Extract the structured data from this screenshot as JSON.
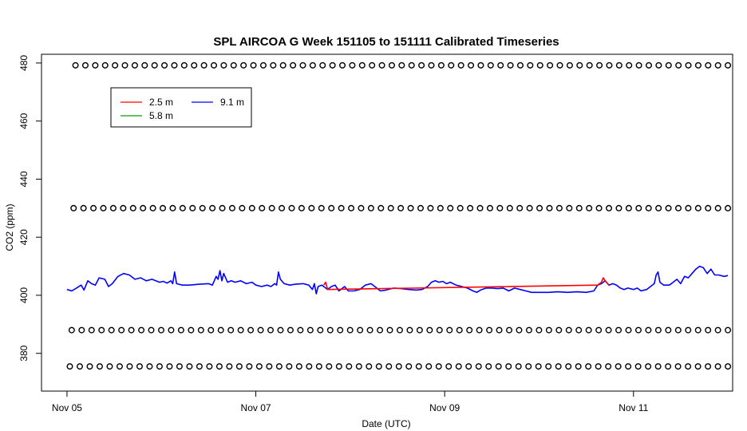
{
  "chart_data": {
    "type": "line",
    "title": "SPL AIRCOA G  Week 151105 to 151111  Calibrated Timeseries",
    "xlabel": "Date (UTC)",
    "ylabel": "CO2 (ppm)",
    "x_ticks": [
      {
        "day": 0,
        "label": "Nov 05"
      },
      {
        "day": 2,
        "label": "Nov 07"
      },
      {
        "day": 4,
        "label": "Nov 09"
      },
      {
        "day": 6,
        "label": "Nov 11"
      }
    ],
    "y_ticks": [
      380,
      400,
      420,
      440,
      460,
      480
    ],
    "xlim_days": [
      -0.27,
      7.05
    ],
    "ylim": [
      367,
      483
    ],
    "legend": {
      "placement": "top-left",
      "entries": [
        {
          "label": "2.5 m",
          "color": "#ff0000"
        },
        {
          "label": "5.8 m",
          "color": "#00a000"
        },
        {
          "label": "9.1 m",
          "color": "#0000ff"
        }
      ]
    },
    "series": [
      {
        "name": "9.1 m",
        "color": "#0000ff",
        "points": [
          [
            0.0,
            402.0
          ],
          [
            0.05,
            401.5
          ],
          [
            0.1,
            402.5
          ],
          [
            0.15,
            403.5
          ],
          [
            0.18,
            401.8
          ],
          [
            0.22,
            405.0
          ],
          [
            0.26,
            404.0
          ],
          [
            0.3,
            403.5
          ],
          [
            0.34,
            406.0
          ],
          [
            0.4,
            405.5
          ],
          [
            0.44,
            403.0
          ],
          [
            0.48,
            404.0
          ],
          [
            0.54,
            406.5
          ],
          [
            0.6,
            407.5
          ],
          [
            0.66,
            407.0
          ],
          [
            0.72,
            405.5
          ],
          [
            0.78,
            406.0
          ],
          [
            0.84,
            405.0
          ],
          [
            0.9,
            405.5
          ],
          [
            0.94,
            405.0
          ],
          [
            0.98,
            404.5
          ],
          [
            1.02,
            404.8
          ],
          [
            1.06,
            404.2
          ],
          [
            1.1,
            405.0
          ],
          [
            1.12,
            404.0
          ],
          [
            1.14,
            408.0
          ],
          [
            1.16,
            404.0
          ],
          [
            1.22,
            403.5
          ],
          [
            1.3,
            403.5
          ],
          [
            1.4,
            403.8
          ],
          [
            1.5,
            404.0
          ],
          [
            1.54,
            403.5
          ],
          [
            1.58,
            406.5
          ],
          [
            1.6,
            405.5
          ],
          [
            1.62,
            408.5
          ],
          [
            1.64,
            405.0
          ],
          [
            1.66,
            407.5
          ],
          [
            1.7,
            404.5
          ],
          [
            1.74,
            405.0
          ],
          [
            1.78,
            404.5
          ],
          [
            1.84,
            405.0
          ],
          [
            1.9,
            404.0
          ],
          [
            1.96,
            404.5
          ],
          [
            2.0,
            403.5
          ],
          [
            2.06,
            403.0
          ],
          [
            2.12,
            403.5
          ],
          [
            2.16,
            403.0
          ],
          [
            2.2,
            404.0
          ],
          [
            2.22,
            403.5
          ],
          [
            2.24,
            408.0
          ],
          [
            2.26,
            405.5
          ],
          [
            2.3,
            404.0
          ],
          [
            2.36,
            403.5
          ],
          [
            2.42,
            403.8
          ],
          [
            2.5,
            404.0
          ],
          [
            2.56,
            403.5
          ],
          [
            2.6,
            402.0
          ],
          [
            2.62,
            404.0
          ],
          [
            2.64,
            400.5
          ],
          [
            2.66,
            403.0
          ],
          [
            2.7,
            403.5
          ],
          [
            2.76,
            402.0
          ],
          [
            2.8,
            403.0
          ],
          [
            2.84,
            403.5
          ],
          [
            2.88,
            401.5
          ],
          [
            2.94,
            403.0
          ],
          [
            2.98,
            401.5
          ],
          [
            3.04,
            401.5
          ],
          [
            3.1,
            402.0
          ],
          [
            3.16,
            403.5
          ],
          [
            3.22,
            404.0
          ],
          [
            3.28,
            402.5
          ],
          [
            3.32,
            401.5
          ],
          [
            3.38,
            401.8
          ],
          [
            3.46,
            402.5
          ],
          [
            3.54,
            402.3
          ],
          [
            3.62,
            402.0
          ],
          [
            3.7,
            401.8
          ],
          [
            3.76,
            402.0
          ],
          [
            3.82,
            403.0
          ],
          [
            3.86,
            404.5
          ],
          [
            3.9,
            405.0
          ],
          [
            3.94,
            404.5
          ],
          [
            3.98,
            404.8
          ],
          [
            4.02,
            404.0
          ],
          [
            4.06,
            404.5
          ],
          [
            4.12,
            403.5
          ],
          [
            4.18,
            403.0
          ],
          [
            4.24,
            402.5
          ],
          [
            4.3,
            401.5
          ],
          [
            4.34,
            401.0
          ],
          [
            4.38,
            401.8
          ],
          [
            4.44,
            402.5
          ],
          [
            4.5,
            402.5
          ],
          [
            4.56,
            402.3
          ],
          [
            4.62,
            402.5
          ],
          [
            4.68,
            401.5
          ],
          [
            4.74,
            402.5
          ],
          [
            4.8,
            402.0
          ],
          [
            4.86,
            401.5
          ],
          [
            4.92,
            401.0
          ],
          [
            5.0,
            401.0
          ],
          [
            5.1,
            401.0
          ],
          [
            5.2,
            401.2
          ],
          [
            5.3,
            401.0
          ],
          [
            5.4,
            401.2
          ],
          [
            5.5,
            401.0
          ],
          [
            5.58,
            401.5
          ],
          [
            5.62,
            403.5
          ],
          [
            5.66,
            404.0
          ],
          [
            5.7,
            405.0
          ],
          [
            5.74,
            403.5
          ],
          [
            5.78,
            404.0
          ],
          [
            5.82,
            403.5
          ],
          [
            5.86,
            402.5
          ],
          [
            5.9,
            402.0
          ],
          [
            5.94,
            402.5
          ],
          [
            6.0,
            402.0
          ],
          [
            6.04,
            402.5
          ],
          [
            6.08,
            401.5
          ],
          [
            6.14,
            402.0
          ],
          [
            6.18,
            403.0
          ],
          [
            6.22,
            404.0
          ],
          [
            6.24,
            407.0
          ],
          [
            6.26,
            408.0
          ],
          [
            6.28,
            404.5
          ],
          [
            6.32,
            403.5
          ],
          [
            6.38,
            403.5
          ],
          [
            6.42,
            404.5
          ],
          [
            6.46,
            405.5
          ],
          [
            6.5,
            404.0
          ],
          [
            6.54,
            406.5
          ],
          [
            6.58,
            406.0
          ],
          [
            6.62,
            407.5
          ],
          [
            6.66,
            409.0
          ],
          [
            6.7,
            410.0
          ],
          [
            6.74,
            409.5
          ],
          [
            6.78,
            407.5
          ],
          [
            6.82,
            409.0
          ],
          [
            6.86,
            407.0
          ],
          [
            6.9,
            407.0
          ],
          [
            6.96,
            406.5
          ],
          [
            7.0,
            406.8
          ]
        ]
      },
      {
        "name": "2.5 m",
        "color": "#ff0000",
        "points": [
          [
            2.72,
            403.5
          ],
          [
            2.74,
            404.5
          ],
          [
            2.76,
            402.0
          ],
          [
            5.62,
            403.5
          ],
          [
            5.66,
            404.5
          ],
          [
            5.68,
            406.0
          ],
          [
            5.7,
            405.0
          ],
          [
            5.74,
            403.5
          ]
        ]
      }
    ],
    "marker_rows": [
      {
        "value": 479.2,
        "x_from": 0.09,
        "x_to": 7.0,
        "count": 67
      },
      {
        "value": 430.0,
        "x_from": 0.07,
        "x_to": 7.0,
        "count": 67
      },
      {
        "value": 388.0,
        "x_from": 0.05,
        "x_to": 7.0,
        "count": 67
      },
      {
        "value": 375.5,
        "x_from": 0.03,
        "x_to": 7.0,
        "count": 67
      }
    ]
  }
}
